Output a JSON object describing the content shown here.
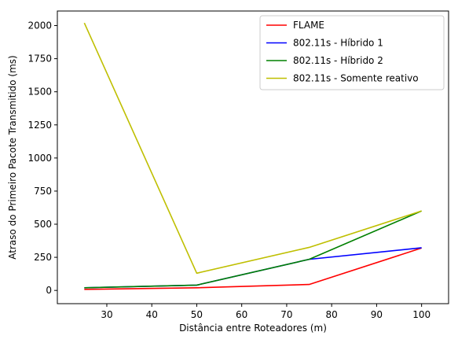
{
  "chart_data": {
    "type": "line",
    "xlabel": "Distância entre Roteadores (m)",
    "ylabel": "Atraso do Primeiro Pacote Transmitido (ms)",
    "xlim": [
      19,
      106
    ],
    "ylim": [
      -100,
      2110
    ],
    "xticks": [
      30,
      40,
      50,
      60,
      70,
      80,
      90,
      100
    ],
    "yticks": [
      0,
      250,
      500,
      750,
      1000,
      1250,
      1500,
      1750,
      2000
    ],
    "grid": false,
    "legend_position": "top-right",
    "x": [
      25,
      50,
      75,
      100
    ],
    "series": [
      {
        "name": "FLAME",
        "color": "#ff0000",
        "values": [
          8,
          20,
          45,
          320
        ]
      },
      {
        "name": "802.11s - Híbrido 1",
        "color": "#0000ff",
        "values": [
          20,
          40,
          235,
          322
        ]
      },
      {
        "name": "802.11s - Híbrido 2",
        "color": "#008000",
        "values": [
          20,
          40,
          235,
          600
        ]
      },
      {
        "name": "802.11s - Somente reativo",
        "color": "#bfbf00",
        "values": [
          2020,
          130,
          325,
          600
        ]
      }
    ]
  }
}
